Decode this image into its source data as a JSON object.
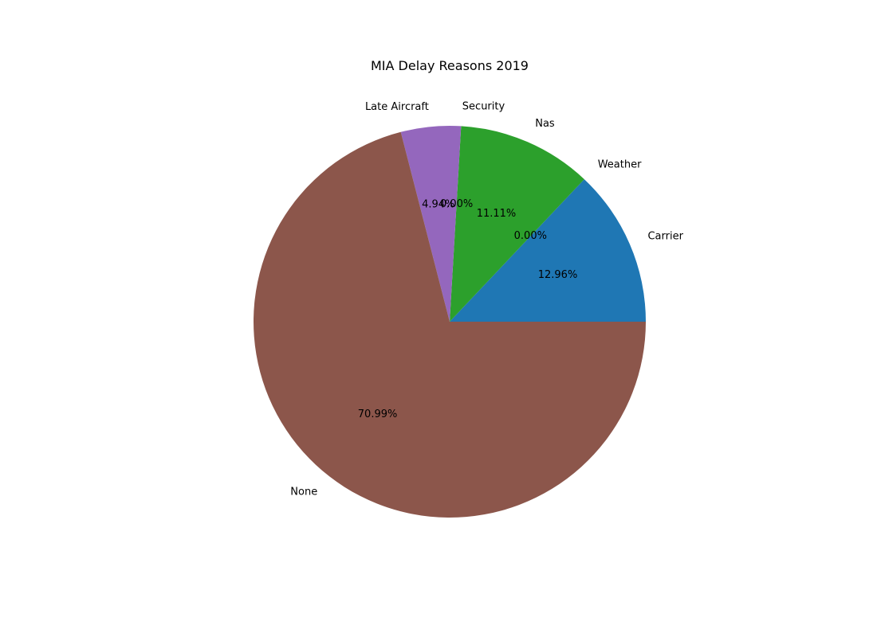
{
  "chart_data": {
    "type": "pie",
    "title": "MIA Delay Reasons 2019",
    "slices": [
      {
        "label": "Carrier",
        "value": 12.96,
        "pct_label": "12.96%",
        "color": "#1f77b4"
      },
      {
        "label": "Weather",
        "value": 0.0,
        "pct_label": "0.00%",
        "color": "#ff7f0e"
      },
      {
        "label": "Nas",
        "value": 11.11,
        "pct_label": "11.11%",
        "color": "#2ca02c"
      },
      {
        "label": "Security",
        "value": 0.0,
        "pct_label": "0.00%",
        "color": "#d62728"
      },
      {
        "label": "Late Aircraft",
        "value": 4.94,
        "pct_label": "4.94%",
        "color": "#9467bd"
      },
      {
        "label": "None",
        "value": 70.99,
        "pct_label": "70.99%",
        "color": "#8c564b"
      }
    ],
    "start_angle_deg": 0,
    "direction": "counterclockwise",
    "legend": "none"
  }
}
